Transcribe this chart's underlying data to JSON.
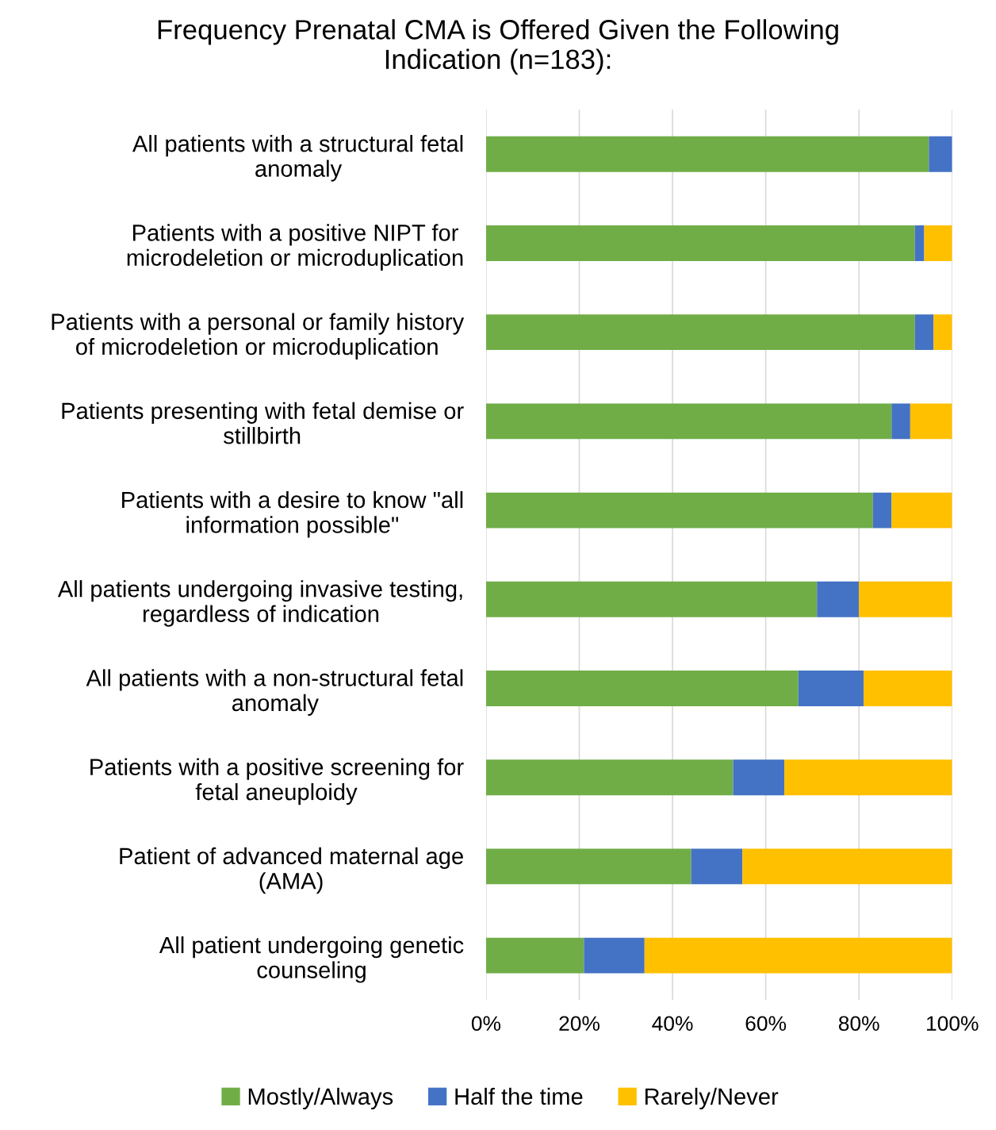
{
  "chart_data": {
    "type": "bar",
    "orientation": "horizontal",
    "stacked": true,
    "title": "Frequency Prenatal CMA is Offered Given the Following\nIndication (n=183):",
    "categories": [
      "All patients with a structural fetal\nanomaly",
      "Patients with a positive NIPT for\nmicrodeletion or microduplication",
      "Patients with a personal or family history\nof microdeletion or microduplication",
      "Patients presenting with fetal demise or\nstillbirth",
      "Patients with a desire to know \"all\ninformation possible\"",
      "All patients undergoing invasive testing,\nregardless of indication",
      "All patients with a non-structural fetal\nanomaly",
      "Patients with a positive screening for\nfetal aneuploidy",
      "Patient of advanced maternal age\n(AMA)",
      "All patient undergoing genetic\ncounseling"
    ],
    "series": [
      {
        "name": "Mostly/Always",
        "color": "#70ad47",
        "values": [
          95,
          92,
          92,
          87,
          83,
          71,
          67,
          53,
          44,
          21
        ]
      },
      {
        "name": "Half the time",
        "color": "#4472c4",
        "values": [
          5,
          2,
          4,
          4,
          4,
          9,
          14,
          11,
          11,
          13
        ]
      },
      {
        "name": "Rarely/Never",
        "color": "#ffc000",
        "values": [
          0,
          6,
          4,
          9,
          13,
          20,
          19,
          36,
          45,
          66
        ]
      }
    ],
    "xlim": [
      0,
      100
    ],
    "xticks": [
      {
        "value": 0,
        "label": "0%"
      },
      {
        "value": 20,
        "label": "20%"
      },
      {
        "value": 40,
        "label": "40%"
      },
      {
        "value": 60,
        "label": "60%"
      },
      {
        "value": 80,
        "label": "80%"
      },
      {
        "value": 100,
        "label": "100%"
      }
    ],
    "grid": "x",
    "legend": "bottom"
  }
}
